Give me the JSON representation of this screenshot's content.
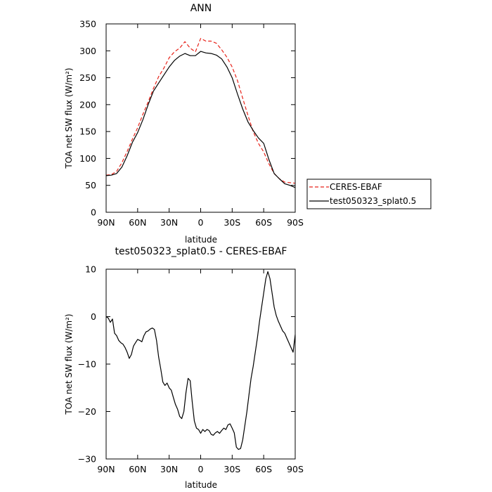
{
  "chart_data": [
    {
      "type": "line",
      "title": "ANN",
      "xlabel": "latitude",
      "ylabel": "TOA net SW flux (W/m²)",
      "xlim": [
        90,
        -90
      ],
      "ylim": [
        0,
        350
      ],
      "x_ticks": [
        90,
        60,
        30,
        0,
        -30,
        -60,
        -90
      ],
      "x_tick_labels": [
        "90N",
        "60N",
        "30N",
        "0",
        "30S",
        "60S",
        "90S"
      ],
      "y_ticks": [
        0,
        50,
        100,
        150,
        200,
        250,
        300,
        350
      ],
      "y_tick_labels": [
        "0",
        "50",
        "100",
        "150",
        "200",
        "250",
        "300",
        "350"
      ],
      "legend_position": "right",
      "series": [
        {
          "name": "CERES-EBAF",
          "color": "#e8231a",
          "style": "dashed",
          "x": [
            90,
            85,
            80,
            75,
            70,
            65,
            60,
            55,
            50,
            45,
            40,
            35,
            30,
            25,
            20,
            15,
            10,
            5,
            0,
            -5,
            -10,
            -15,
            -20,
            -25,
            -30,
            -35,
            -40,
            -45,
            -50,
            -55,
            -60,
            -65,
            -70,
            -75,
            -80,
            -85,
            -90
          ],
          "y": [
            69,
            70,
            76,
            92,
            113,
            136,
            157,
            182,
            205,
            230,
            252,
            268,
            287,
            298,
            305,
            317,
            305,
            298,
            323,
            318,
            318,
            314,
            302,
            288,
            270,
            245,
            212,
            180,
            150,
            128,
            112,
            90,
            72,
            62,
            56,
            55,
            54
          ]
        },
        {
          "name": "test050323_splat0.5",
          "color": "#000000",
          "style": "solid",
          "x": [
            90,
            85,
            80,
            75,
            70,
            65,
            60,
            55,
            50,
            45,
            40,
            35,
            30,
            25,
            20,
            15,
            10,
            5,
            0,
            -5,
            -10,
            -15,
            -20,
            -25,
            -30,
            -35,
            -40,
            -45,
            -50,
            -55,
            -60,
            -65,
            -70,
            -75,
            -80,
            -85,
            -90
          ],
          "y": [
            68,
            69,
            72,
            84,
            105,
            130,
            148,
            172,
            200,
            225,
            240,
            255,
            270,
            282,
            290,
            295,
            291,
            291,
            299,
            296,
            295,
            292,
            285,
            270,
            250,
            220,
            192,
            168,
            152,
            138,
            128,
            98,
            72,
            62,
            53,
            50,
            46
          ]
        }
      ]
    },
    {
      "type": "line",
      "title": "test050323_splat0.5 - CERES-EBAF",
      "xlabel": "latitude",
      "ylabel": "TOA net SW flux (W/m²)",
      "xlim": [
        90,
        -90
      ],
      "ylim": [
        -30,
        10
      ],
      "x_ticks": [
        90,
        60,
        30,
        0,
        -30,
        -60,
        -90
      ],
      "x_tick_labels": [
        "90N",
        "60N",
        "30N",
        "0",
        "30S",
        "60S",
        "90S"
      ],
      "y_ticks": [
        -30,
        -20,
        -10,
        0,
        10
      ],
      "y_tick_labels": [
        "−30",
        "−20",
        "−10",
        "0",
        "10"
      ],
      "series": [
        {
          "color": "#000000",
          "style": "solid",
          "x": [
            90,
            88,
            86,
            84,
            82,
            80,
            78,
            76,
            74,
            72,
            70,
            68,
            66,
            64,
            62,
            60,
            58,
            56,
            54,
            52,
            50,
            48,
            46,
            44,
            42,
            40,
            38,
            36,
            34,
            32,
            30,
            28,
            26,
            24,
            22,
            20,
            18,
            16,
            14,
            12,
            10,
            8,
            6,
            4,
            2,
            0,
            -2,
            -4,
            -6,
            -8,
            -10,
            -12,
            -14,
            -16,
            -18,
            -20,
            -22,
            -24,
            -26,
            -28,
            -30,
            -32,
            -34,
            -36,
            -38,
            -40,
            -42,
            -44,
            -46,
            -48,
            -50,
            -52,
            -54,
            -56,
            -58,
            -60,
            -62,
            -64,
            -66,
            -68,
            -70,
            -72,
            -74,
            -76,
            -78,
            -80,
            -82,
            -84,
            -86,
            -88,
            -90
          ],
          "y": [
            0,
            -0.3,
            -1.2,
            -0.5,
            -3.5,
            -4.0,
            -5.0,
            -5.5,
            -5.8,
            -6.5,
            -7.5,
            -8.8,
            -8.0,
            -6.2,
            -5.5,
            -4.8,
            -5.0,
            -5.3,
            -4.0,
            -3.2,
            -3.0,
            -2.6,
            -2.4,
            -2.7,
            -5.0,
            -8.5,
            -11.0,
            -13.8,
            -14.5,
            -14.0,
            -15.0,
            -15.5,
            -17.0,
            -18.5,
            -19.5,
            -21.0,
            -21.5,
            -20.0,
            -16.0,
            -13.0,
            -13.5,
            -18.0,
            -22.0,
            -23.5,
            -23.8,
            -24.6,
            -23.8,
            -24.2,
            -23.8,
            -24.0,
            -24.8,
            -25.0,
            -24.5,
            -24.2,
            -24.6,
            -24.0,
            -23.5,
            -23.8,
            -22.8,
            -22.6,
            -23.5,
            -24.5,
            -27.5,
            -28.0,
            -27.8,
            -26.0,
            -23.0,
            -20.0,
            -16.5,
            -13.0,
            -10.5,
            -7.5,
            -4.5,
            -1.0,
            2.0,
            5.0,
            8.0,
            9.5,
            8.0,
            5.0,
            2.0,
            0.2,
            -1.0,
            -2.0,
            -3.0,
            -3.5,
            -4.5,
            -5.5,
            -6.5,
            -7.5,
            -3.8
          ]
        }
      ]
    }
  ]
}
